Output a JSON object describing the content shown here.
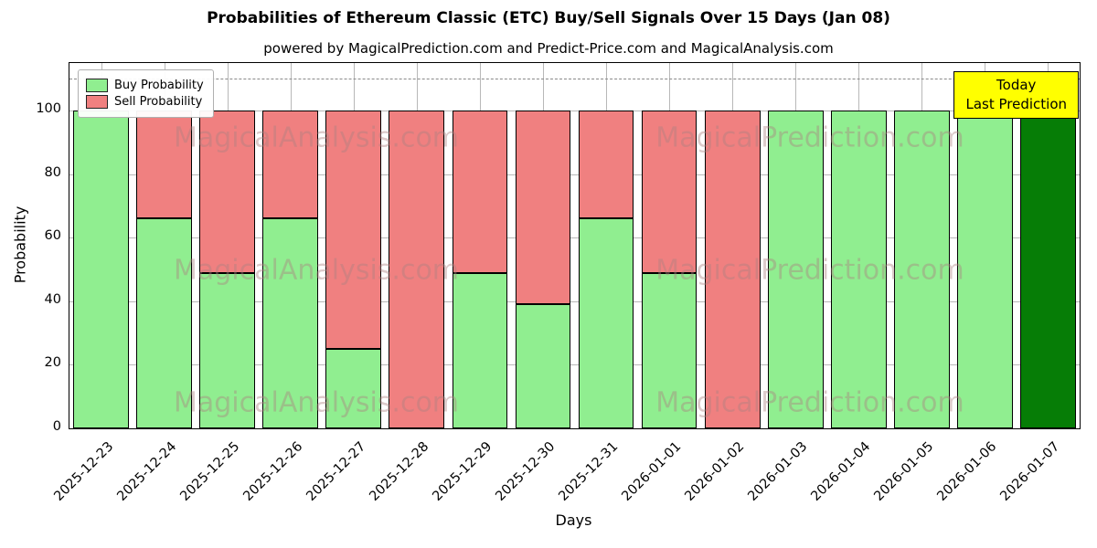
{
  "title": "Probabilities of Ethereum Classic (ETC) Buy/Sell Signals Over 15 Days (Jan 08)",
  "subtitle": "powered by MagicalPrediction.com and Predict-Price.com and MagicalAnalysis.com",
  "legend": {
    "buy": "Buy Probability",
    "sell": "Sell Probability"
  },
  "annotation": {
    "line1": "Today",
    "line2": "Last Prediction"
  },
  "axes": {
    "xlabel": "Days",
    "ylabel": "Probability",
    "yticks": [
      0,
      20,
      40,
      60,
      80,
      100
    ]
  },
  "watermarks": [
    "MagicalAnalysis.com",
    "MagicalPrediction.com"
  ],
  "colors": {
    "buy": "#90EE90",
    "sell": "#F08080",
    "today": "#067d06",
    "annotation_bg": "#FFFF00",
    "edge": "#000000"
  },
  "chart_data": {
    "type": "bar",
    "stacked": true,
    "title": "Probabilities of Ethereum Classic (ETC) Buy/Sell Signals Over 15 Days (Jan 08)",
    "xlabel": "Days",
    "ylabel": "Probability",
    "ylim": [
      0,
      115
    ],
    "grid": true,
    "legend_position": "upper-left",
    "dashed_line_y": 110,
    "today_index": 15,
    "categories": [
      "2025-12-23",
      "2025-12-24",
      "2025-12-25",
      "2025-12-26",
      "2025-12-27",
      "2025-12-28",
      "2025-12-29",
      "2025-12-30",
      "2025-12-31",
      "2026-01-01",
      "2026-01-02",
      "2026-01-03",
      "2026-01-04",
      "2026-01-05",
      "2026-01-06",
      "2026-01-07"
    ],
    "series": [
      {
        "name": "Buy Probability",
        "values": [
          100,
          66,
          49,
          66,
          25,
          0,
          49,
          39,
          66,
          49,
          0,
          100,
          100,
          100,
          100,
          100
        ]
      },
      {
        "name": "Sell Probability",
        "values": [
          0,
          34,
          51,
          34,
          75,
          100,
          51,
          61,
          34,
          51,
          100,
          0,
          0,
          0,
          0,
          0
        ]
      }
    ]
  }
}
